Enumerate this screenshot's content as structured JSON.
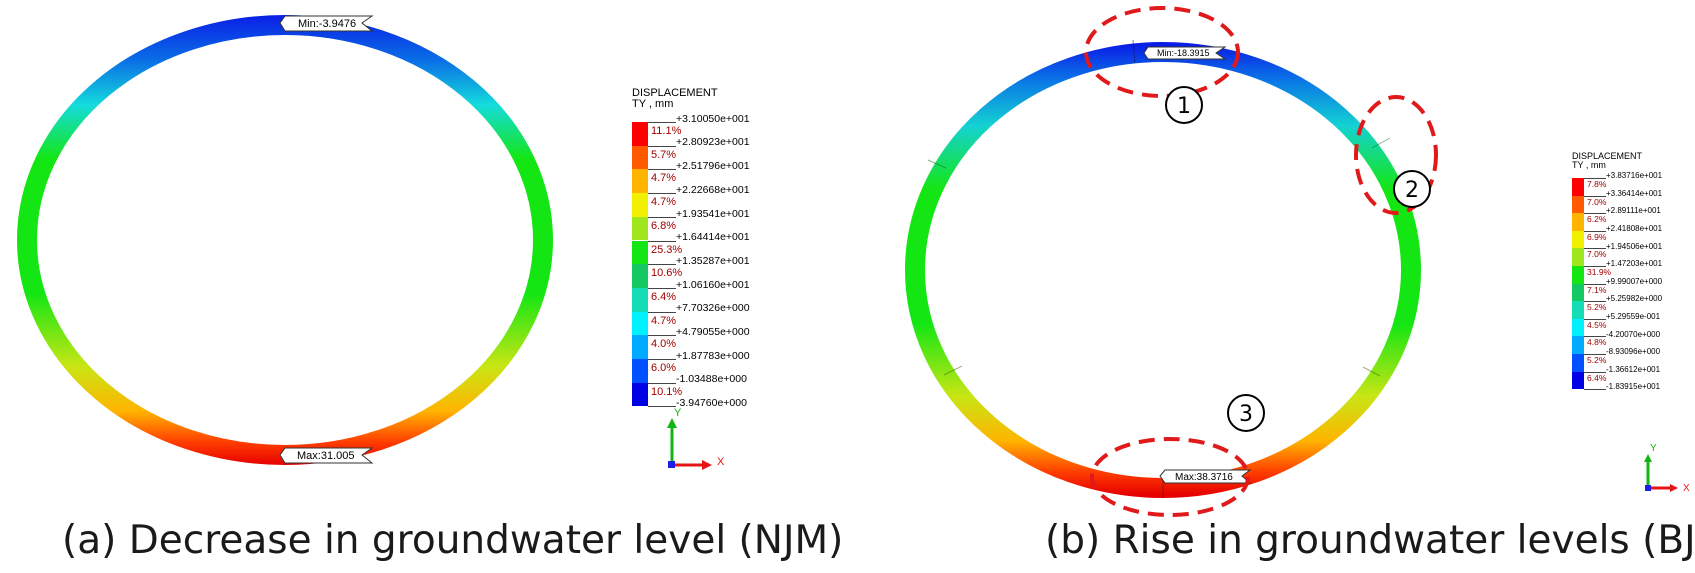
{
  "captions": {
    "a": "(a) Decrease in groundwater level (NJM)",
    "b": "(b) Rise in groundwater levels (BJM)"
  },
  "panel_a": {
    "min_label": "Min:-3.9476",
    "max_label": "Max:31.005",
    "legend": {
      "title": "DISPLACEMENT\nTY , mm",
      "bounds": [
        "+3.10050e+001",
        "+2.80923e+001",
        "+2.51796e+001",
        "+2.22668e+001",
        "+1.93541e+001",
        "+1.64414e+001",
        "+1.35287e+001",
        "+1.06160e+001",
        "+7.70326e+000",
        "+4.79055e+000",
        "+1.87783e+000",
        "-1.03488e+000",
        "-3.94760e+000"
      ],
      "percents": [
        "11.1%",
        "5.7%",
        "4.7%",
        "4.7%",
        "6.8%",
        "25.3%",
        "10.6%",
        "6.4%",
        "4.7%",
        "4.0%",
        "6.0%",
        "10.1%"
      ]
    },
    "axes": {
      "y": "Y",
      "x": "X"
    }
  },
  "panel_b": {
    "min_label": "Min:-18.3915",
    "max_label": "Max:38.3716",
    "markers": [
      "1",
      "2",
      "3"
    ],
    "legend": {
      "title": "DISPLACEMENT\nTY , mm",
      "bounds": [
        "+3.83716e+001",
        "+3.36414e+001",
        "+2.89111e+001",
        "+2.41808e+001",
        "+1.94506e+001",
        "+1.47203e+001",
        "+9.99007e+000",
        "+5.25982e+000",
        "+5.29559e-001",
        "-4.20070e+000",
        "-8.93096e+000",
        "-1.36612e+001",
        "-1.83915e+001"
      ],
      "percents": [
        "7.8%",
        "7.0%",
        "6.2%",
        "6.9%",
        "7.0%",
        "31.9%",
        "7.1%",
        "5.2%",
        "4.5%",
        "4.8%",
        "5.2%",
        "6.4%"
      ]
    },
    "axes": {
      "y": "Y",
      "x": "X"
    }
  },
  "colors": {
    "scale": [
      "#ff0000",
      "#ff5a00",
      "#ffb400",
      "#f0f000",
      "#a0e61e",
      "#14e614",
      "#14c864",
      "#14dcb4",
      "#00f0ff",
      "#00aaff",
      "#0050ff",
      "#0000e6"
    ],
    "ring_gradient_top": "#0a28e6",
    "ring_gradient_bottom": "#e61414",
    "marker": "#e01a1a"
  }
}
